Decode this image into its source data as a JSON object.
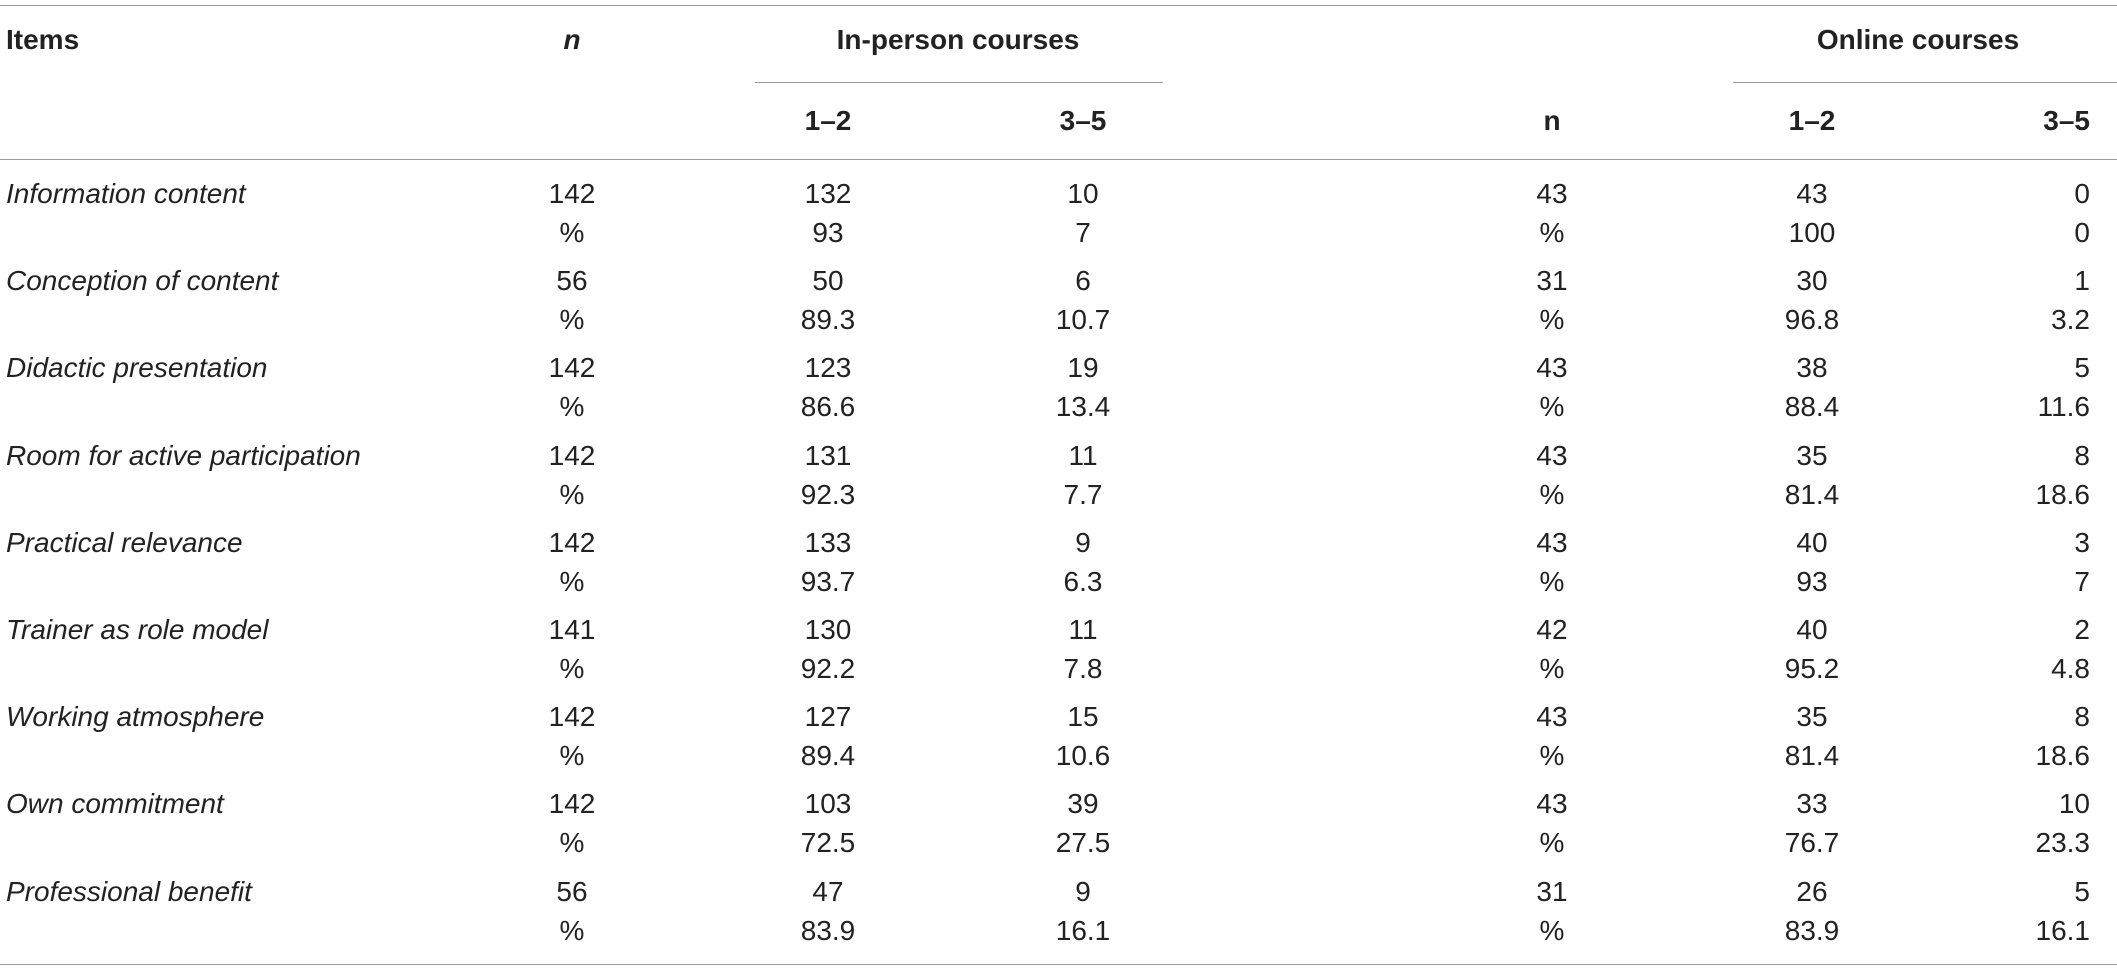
{
  "header": {
    "items": "Items",
    "n_inperson": "n",
    "inperson_group": "In-person courses",
    "n_online": "n",
    "online_group": "Online courses",
    "inperson_low": "1–2",
    "inperson_high": "3–5",
    "online_low": "1–2",
    "online_high": "3–5"
  },
  "rows": [
    {
      "item": "Information content",
      "n1": "142",
      "a1": "132",
      "b1": "10",
      "n2": "43",
      "a2": "43",
      "b2": "0",
      "pct": "%",
      "pa1": "93",
      "pb1": "7",
      "pa2": "100",
      "pb2": "0"
    },
    {
      "item": "Conception of content",
      "n1": "56",
      "a1": "50",
      "b1": "6",
      "n2": "31",
      "a2": "30",
      "b2": "1",
      "pct": "%",
      "pa1": "89.3",
      "pb1": "10.7",
      "pa2": "96.8",
      "pb2": "3.2"
    },
    {
      "item": "Didactic presentation",
      "n1": "142",
      "a1": "123",
      "b1": "19",
      "n2": "43",
      "a2": "38",
      "b2": "5",
      "pct": "%",
      "pa1": "86.6",
      "pb1": "13.4",
      "pa2": "88.4",
      "pb2": "11.6"
    },
    {
      "item": "Room for active participation",
      "n1": "142",
      "a1": "131",
      "b1": "11",
      "n2": "43",
      "a2": "35",
      "b2": "8",
      "pct": "%",
      "pa1": "92.3",
      "pb1": "7.7",
      "pa2": "81.4",
      "pb2": "18.6"
    },
    {
      "item": "Practical relevance",
      "n1": "142",
      "a1": "133",
      "b1": "9",
      "n2": "43",
      "a2": "40",
      "b2": "3",
      "pct": "%",
      "pa1": "93.7",
      "pb1": "6.3",
      "pa2": "93",
      "pb2": "7"
    },
    {
      "item": "Trainer as role model",
      "n1": "141",
      "a1": "130",
      "b1": "11",
      "n2": "42",
      "a2": "40",
      "b2": "2",
      "pct": "%",
      "pa1": "92.2",
      "pb1": "7.8",
      "pa2": "95.2",
      "pb2": "4.8"
    },
    {
      "item": "Working atmosphere",
      "n1": "142",
      "a1": "127",
      "b1": "15",
      "n2": "43",
      "a2": "35",
      "b2": "8",
      "pct": "%",
      "pa1": "89.4",
      "pb1": "10.6",
      "pa2": "81.4",
      "pb2": "18.6"
    },
    {
      "item": "Own commitment",
      "n1": "142",
      "a1": "103",
      "b1": "39",
      "n2": "43",
      "a2": "33",
      "b2": "10",
      "pct": "%",
      "pa1": "72.5",
      "pb1": "27.5",
      "pa2": "76.7",
      "pb2": "23.3"
    },
    {
      "item": "Professional benefit",
      "n1": "56",
      "a1": "47",
      "b1": "9",
      "n2": "31",
      "a2": "26",
      "b2": "5",
      "pct": "%",
      "pa1": "83.9",
      "pb1": "16.1",
      "pa2": "83.9",
      "pb2": "16.1"
    }
  ]
}
